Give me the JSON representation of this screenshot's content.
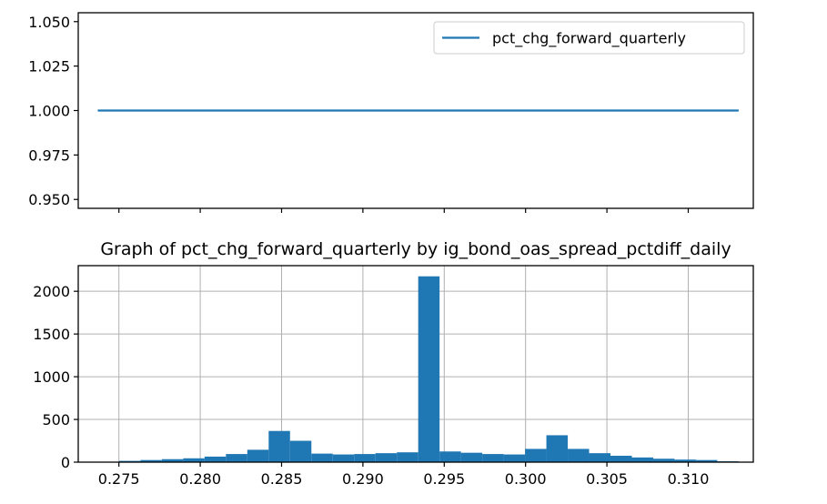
{
  "chart_data": [
    {
      "type": "line",
      "title": "",
      "xlabel": "",
      "ylabel": "",
      "ylim": [
        0.945,
        1.055
      ],
      "xlim": [
        0.2725,
        0.314
      ],
      "yticks": [
        0.95,
        0.975,
        1.0,
        1.025,
        1.05
      ],
      "ytick_labels": [
        "0.950",
        "0.975",
        "1.000",
        "1.025",
        "1.050"
      ],
      "xticks": [
        0.275,
        0.28,
        0.285,
        0.29,
        0.295,
        0.3,
        0.305,
        0.31
      ],
      "xtick_labels_shown": false,
      "grid": false,
      "legend": "upper right",
      "series": [
        {
          "name": "pct_chg_forward_quarterly",
          "color": "#1f77b4",
          "x": [
            0.2737,
            0.3131
          ],
          "values": [
            1.0,
            1.0
          ]
        }
      ]
    },
    {
      "type": "bar",
      "subtype": "histogram",
      "title": "Graph of pct_chg_forward_quarterly by ig_bond_oas_spread_pctdiff_daily",
      "xlabel": "",
      "ylabel": "",
      "ylim": [
        0,
        2300
      ],
      "xlim": [
        0.2725,
        0.314
      ],
      "yticks": [
        0,
        500,
        1000,
        1500,
        2000
      ],
      "ytick_labels": [
        "0",
        "500",
        "1000",
        "1500",
        "2000"
      ],
      "xticks": [
        0.275,
        0.28,
        0.285,
        0.29,
        0.295,
        0.3,
        0.305,
        0.31
      ],
      "xtick_labels": [
        "0.275",
        "0.280",
        "0.285",
        "0.290",
        "0.295",
        "0.300",
        "0.305",
        "0.310"
      ],
      "grid": true,
      "color": "#1f77b4",
      "bin_start": 0.2737,
      "bin_width": 0.0013133,
      "counts": [
        5,
        15,
        25,
        35,
        45,
        65,
        95,
        145,
        365,
        250,
        100,
        90,
        95,
        105,
        115,
        2175,
        125,
        110,
        95,
        90,
        155,
        315,
        155,
        105,
        75,
        55,
        40,
        30,
        25,
        10
      ]
    }
  ]
}
